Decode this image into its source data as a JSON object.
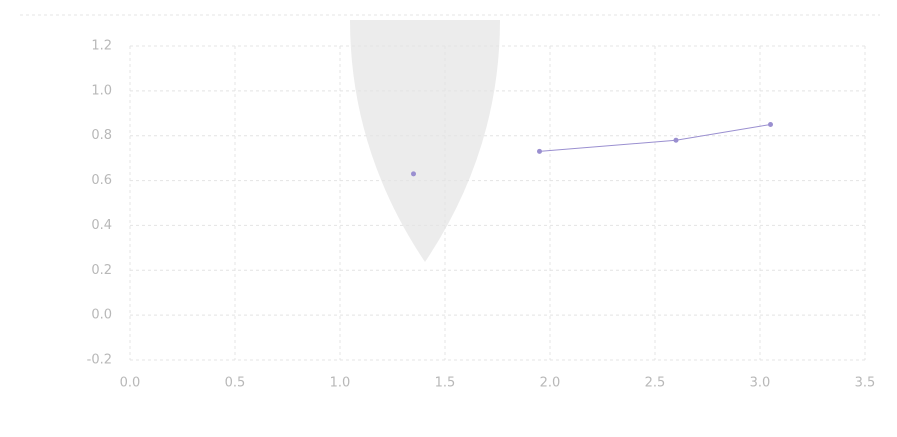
{
  "chart_data": {
    "type": "line",
    "series": [
      {
        "color": "#9a8fd0",
        "x": [
          1.35
        ],
        "values": [
          0.63
        ]
      },
      {
        "color": "#9a8fd0",
        "x": [
          1.95,
          2.6,
          3.05
        ],
        "values": [
          0.73,
          0.78,
          0.85
        ]
      }
    ],
    "xlim": [
      0.0,
      3.5
    ],
    "xticks": [
      {
        "value": 0,
        "label": "0.0"
      },
      0.5,
      {
        "value": 1,
        "label": "1.0"
      },
      1.5,
      {
        "value": 2,
        "label": "2.0"
      },
      2.5,
      {
        "value": 3,
        "label": "3.0"
      },
      3.5
    ],
    "ylim": [
      -0.2,
      1.2
    ],
    "yticks": [
      -0.2,
      {
        "value": 0,
        "label": "0.0"
      },
      0.2,
      0.4,
      0.6,
      0.8,
      {
        "value": 1,
        "label": "1.0"
      },
      1.2
    ],
    "grid": true
  }
}
